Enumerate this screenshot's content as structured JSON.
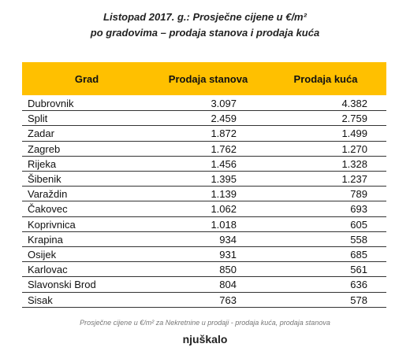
{
  "header": {
    "title_line1": "Listopad 2017. g.: Prosječne cijene u €/m²",
    "title_line2": "po gradovima – prodaja stanova i prodaja kuća"
  },
  "table": {
    "columns": [
      "Grad",
      "Prodaja stanova",
      "Prodaja kuća"
    ],
    "rows": [
      [
        "Dubrovnik",
        "3.097",
        "4.382"
      ],
      [
        "Split",
        "2.459",
        "2.759"
      ],
      [
        "Zadar",
        "1.872",
        "1.499"
      ],
      [
        "Zagreb",
        "1.762",
        "1.270"
      ],
      [
        "Rijeka",
        "1.456",
        "1.328"
      ],
      [
        "Šibenik",
        "1.395",
        "1.237"
      ],
      [
        "Varaždin",
        "1.139",
        "789"
      ],
      [
        "Čakovec",
        "1.062",
        "693"
      ],
      [
        "Koprivnica",
        "1.018",
        "605"
      ],
      [
        "Krapina",
        "934",
        "558"
      ],
      [
        "Osijek",
        "931",
        "685"
      ],
      [
        "Karlovac",
        "850",
        "561"
      ],
      [
        "Slavonski Brod",
        "804",
        "636"
      ],
      [
        "Sisak",
        "763",
        "578"
      ]
    ]
  },
  "footer": {
    "caption": "Prosječne cijene u €/m² za Nekretnine u prodaji - prodaja kuća, prodaja stanova",
    "logo": "njuškalo"
  }
}
